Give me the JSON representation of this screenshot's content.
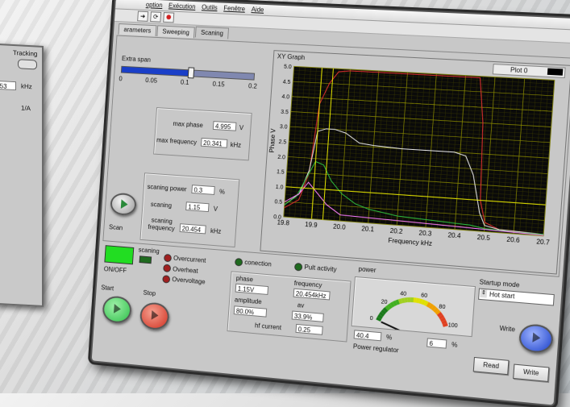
{
  "menu": {
    "items": [
      "option",
      "Exécution",
      "Outils",
      "Fenêtre",
      "Aide"
    ]
  },
  "toolbar": {
    "icons": [
      "run-arrow-icon",
      "run-continuous-icon",
      "stop-icon"
    ]
  },
  "background_window": {
    "tracking_label": "Tracking",
    "value1": ".053",
    "unit1": "kHz",
    "value2": "1/A"
  },
  "tabs": [
    {
      "label": "arameters"
    },
    {
      "label": "Sweeping"
    },
    {
      "label": "Scaning"
    }
  ],
  "extra_span": {
    "label": "Extra span",
    "ticks": [
      "0",
      "0.05",
      "0.1",
      "0.15",
      "0.2"
    ],
    "value": 0.105
  },
  "max_panel": {
    "phase_label": "max phase",
    "phase_value": "4.995",
    "phase_unit": "V",
    "freq_label": "max frequency",
    "freq_value": "20.341",
    "freq_unit": "kHz"
  },
  "scan_panel": {
    "power_label": "scaning power",
    "power_value": "0.3",
    "power_unit": "%",
    "scaning_label": "scaning",
    "scaning_value": "1.15",
    "scaning_unit": "V",
    "freq_label": "scaning frequency",
    "freq_value": "20.454",
    "freq_unit": "kHz"
  },
  "scan_button_label": "Scan",
  "graph": {
    "title": "XY Graph",
    "plot_label": "Plot 0"
  },
  "chart_data": {
    "type": "line",
    "xlabel": "Frequency  kHz",
    "ylabel": "Phase V",
    "xlim": [
      19.8,
      20.7
    ],
    "ylim": [
      0,
      5
    ],
    "xticks": [
      "19.8",
      "19.9",
      "20.0",
      "20.1",
      "20.2",
      "20.3",
      "20.4",
      "20.5",
      "20.6",
      "20.7"
    ],
    "yticks": [
      "0.0",
      "0.5",
      "1.0",
      "1.5",
      "2.0",
      "2.5",
      "3.0",
      "3.5",
      "4.0",
      "4.5",
      "5.0"
    ],
    "grid": true,
    "series": [
      {
        "color": "#e03030",
        "x": [
          19.8,
          19.85,
          19.88,
          19.9,
          19.93,
          19.96,
          20.0,
          20.1,
          20.2,
          20.3,
          20.4,
          20.45,
          20.47,
          20.48,
          20.5,
          20.55,
          20.7
        ],
        "y": [
          0.3,
          0.6,
          1.5,
          3.8,
          4.5,
          4.9,
          4.95,
          4.95,
          4.95,
          4.95,
          4.95,
          4.95,
          3.5,
          1.0,
          0.3,
          0.1,
          0.05
        ]
      },
      {
        "color": "#e8e8e8",
        "x": [
          19.8,
          19.85,
          19.88,
          19.9,
          19.93,
          19.96,
          20.0,
          20.05,
          20.1,
          20.2,
          20.3,
          20.38,
          20.42,
          20.45,
          20.48,
          20.5,
          20.55,
          20.7
        ],
        "y": [
          0.4,
          0.8,
          1.6,
          2.9,
          3.0,
          3.0,
          2.9,
          2.6,
          2.55,
          2.5,
          2.5,
          2.5,
          2.4,
          1.8,
          0.6,
          0.2,
          0.1,
          0.05
        ]
      },
      {
        "color": "#30c040",
        "x": [
          19.8,
          19.84,
          19.88,
          19.9,
          19.93,
          19.96,
          20.0,
          20.05,
          20.1,
          20.2,
          20.3,
          20.4,
          20.45,
          20.5,
          20.6,
          20.7
        ],
        "y": [
          0.4,
          0.7,
          1.5,
          1.9,
          1.8,
          1.3,
          0.9,
          0.6,
          0.45,
          0.3,
          0.25,
          0.2,
          0.18,
          0.1,
          0.05,
          0.05
        ]
      },
      {
        "color": "#ff80ff",
        "x": [
          19.8,
          19.85,
          19.88,
          19.9,
          19.95,
          20.0,
          20.7
        ],
        "y": [
          0.5,
          0.8,
          1.2,
          1.0,
          0.5,
          0.2,
          0.02
        ]
      }
    ],
    "cursors": [
      {
        "color": "#e6e600",
        "orientation": "vertical",
        "x": 19.9
      },
      {
        "color": "#e6e600",
        "orientation": "vertical",
        "x": 19.94
      },
      {
        "color": "#e6e600",
        "orientation": "horizontal",
        "y": 1.0
      }
    ]
  },
  "status": {
    "scaning_label": "scaning",
    "onoff_label": "ON/OFF",
    "overcurrent": "Overcurrent",
    "overheat": "Overheat",
    "overvoltage": "Overvoltage",
    "conection": "conection",
    "pult_activity": "Pult activity"
  },
  "start_label": "Start",
  "stop_label": "Stop",
  "measurements": {
    "phase_label": "phase",
    "phase_value": "1.15V",
    "frequency_label": "frequency",
    "frequency_value": "20.454kHz",
    "amplitude_label": "amplitude",
    "amplitude_value": "80.0%",
    "av_label": "av",
    "av_value": "33.9%",
    "hf_label": "hf current",
    "hf_value": "0.25"
  },
  "power": {
    "title": "power",
    "gauge_ticks": [
      "0",
      "20",
      "40",
      "60",
      "80",
      "100"
    ],
    "gauge_value": 0,
    "value": "40.4",
    "unit": "%",
    "second_value": "6",
    "second_unit": "%",
    "regulator_label": "Power regulator"
  },
  "startup": {
    "label": "Startup mode",
    "value": "Hot start"
  },
  "write_label": "Write",
  "read_button": "Read",
  "write_button": "Write",
  "colors": {
    "panel": "#c8c8c8",
    "graph_bg": "#0a0a0a",
    "grid": "#6a6a00",
    "accent_blue": "#1a3fc8",
    "green_btn": "#2fbf4a",
    "red_btn": "#d03020"
  }
}
